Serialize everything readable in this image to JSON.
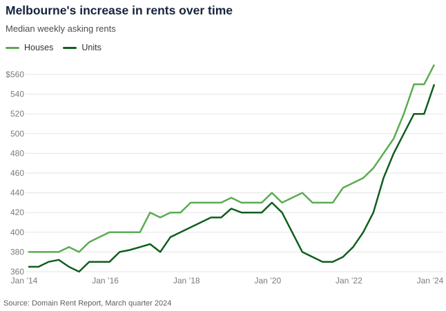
{
  "header": {
    "title": "Melbourne's increase in rents over time",
    "subtitle": "Median weekly asking rents"
  },
  "legend": [
    {
      "label": "Houses",
      "color": "#5aab50"
    },
    {
      "label": "Units",
      "color": "#0e5e1c"
    }
  ],
  "source": "Source: Domain Rent Report, March quarter 2024",
  "colors": {
    "houses_line": "#5aab50",
    "units_line": "#0e5e1c",
    "gridline": "#e3e3e3",
    "tick_text": "#7b7b7b",
    "title_text": "#15243c"
  },
  "chart_data": {
    "type": "line",
    "title": "Melbourne's increase in rents over time",
    "subtitle": "Median weekly asking rents",
    "x_unit": "quarter",
    "x_range": [
      "2014 Q1",
      "2024 Q1"
    ],
    "x_tick_labels": [
      "Jan ’14",
      "Jan ’16",
      "Jan ’18",
      "Jan ’20",
      "Jan ’22",
      "Jan ’24"
    ],
    "y_ticks": [
      360,
      380,
      400,
      420,
      440,
      460,
      480,
      500,
      520,
      540,
      560
    ],
    "y_tick_labels": [
      "360",
      "380",
      "400",
      "420",
      "440",
      "460",
      "480",
      "500",
      "520",
      "540",
      "$560"
    ],
    "ylim": [
      355,
      576
    ],
    "grid": "horizontal",
    "legend_position": "top-left",
    "series": [
      {
        "name": "Houses",
        "color": "#5aab50",
        "values": [
          380,
          380,
          380,
          380,
          385,
          380,
          390,
          395,
          400,
          400,
          400,
          400,
          420,
          415,
          420,
          420,
          430,
          430,
          430,
          430,
          435,
          430,
          430,
          430,
          440,
          430,
          435,
          440,
          430,
          430,
          430,
          445,
          450,
          455,
          465,
          480,
          495,
          520,
          550,
          550,
          570
        ]
      },
      {
        "name": "Units",
        "color": "#0e5e1c",
        "values": [
          365,
          365,
          370,
          372,
          365,
          360,
          370,
          370,
          370,
          380,
          382,
          385,
          388,
          380,
          395,
          400,
          405,
          410,
          415,
          415,
          424,
          420,
          420,
          420,
          430,
          420,
          400,
          380,
          375,
          370,
          370,
          375,
          385,
          400,
          420,
          455,
          480,
          500,
          520,
          520,
          550
        ]
      }
    ]
  }
}
